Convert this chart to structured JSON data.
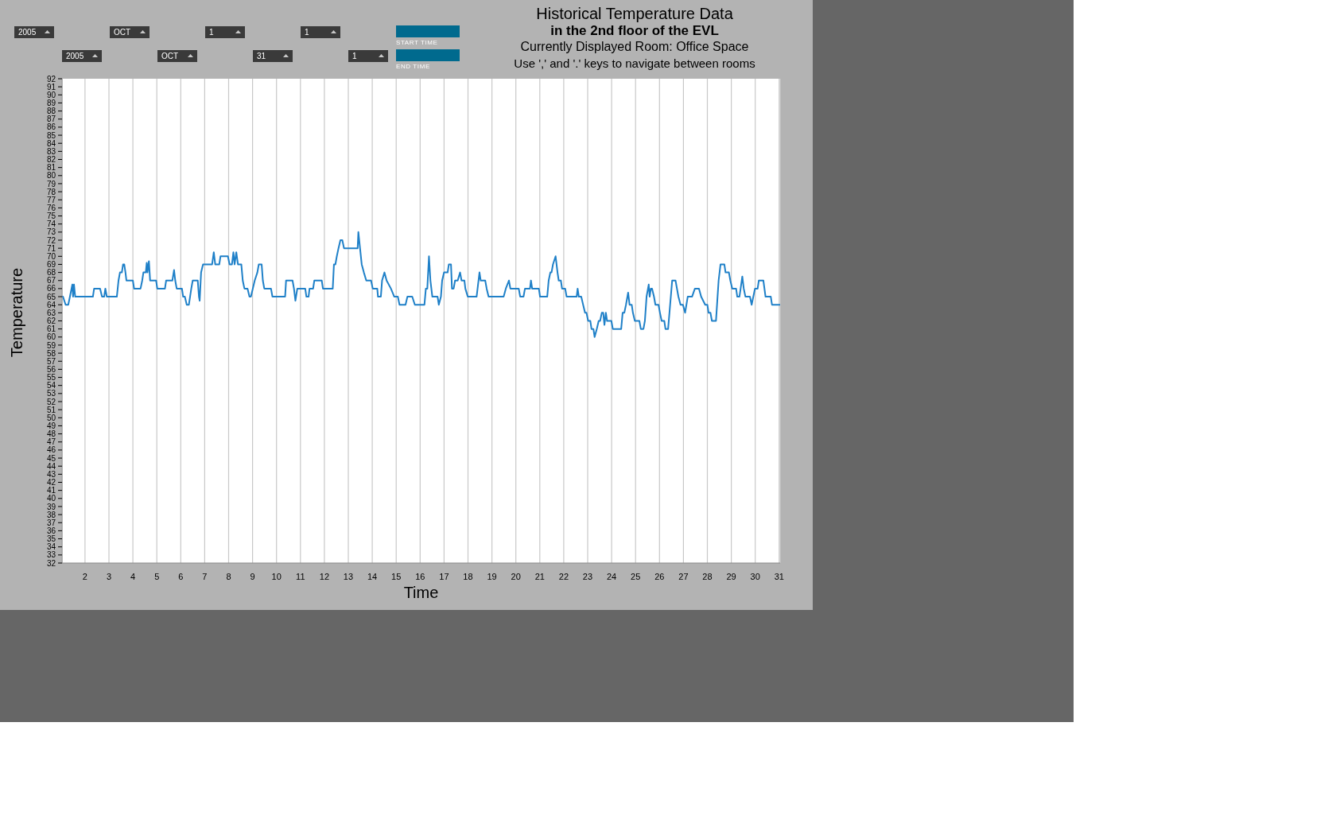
{
  "chart_data": {
    "type": "line",
    "title": "Historical Temperature Data",
    "subtitle": "in the 2nd floor of the EVL",
    "annotations": [
      "Currently Displayed Room: Office Space",
      "Use ',' and '.' keys to navigate between rooms",
      "2005",
      "OCT",
      "1",
      "1",
      "START TIME",
      "2005",
      "OCT",
      "31",
      "1",
      "END TIME"
    ],
    "xlabel": "Time",
    "ylabel": "Temperature",
    "x": [
      1.04,
      1.08,
      1.19,
      1.3,
      1.37,
      1.47,
      1.5,
      1.54,
      1.59,
      2.33,
      2.38,
      2.63,
      2.71,
      2.8,
      2.85,
      2.91,
      3.33,
      3.4,
      3.46,
      3.54,
      3.59,
      3.64,
      3.69,
      3.73,
      4.0,
      4.05,
      4.32,
      4.39,
      4.44,
      4.54,
      4.58,
      4.61,
      4.67,
      4.72,
      4.97,
      5.02,
      5.34,
      5.39,
      5.65,
      5.72,
      5.77,
      5.83,
      6.05,
      6.1,
      6.17,
      6.25,
      6.34,
      6.44,
      6.5,
      6.71,
      6.76,
      6.79,
      6.85,
      6.93,
      7.31,
      7.38,
      7.44,
      7.61,
      7.66,
      7.97,
      8.04,
      8.14,
      8.2,
      8.25,
      8.32,
      8.39,
      8.53,
      8.59,
      8.66,
      8.79,
      8.87,
      8.93,
      9.01,
      9.09,
      9.2,
      9.26,
      9.38,
      9.43,
      9.49,
      9.77,
      9.83,
      10.36,
      10.4,
      10.67,
      10.73,
      10.79,
      10.87,
      11.2,
      11.25,
      11.34,
      11.38,
      11.53,
      11.58,
      11.89,
      11.94,
      12.35,
      12.4,
      12.46,
      12.52,
      12.59,
      12.67,
      12.75,
      12.82,
      13.39,
      13.42,
      13.56,
      13.65,
      13.75,
      13.95,
      14.02,
      14.21,
      14.24,
      14.36,
      14.41,
      14.51,
      14.6,
      14.78,
      14.92,
      15.07,
      15.14,
      15.39,
      15.47,
      15.67,
      15.78,
      16.18,
      16.24,
      16.3,
      16.37,
      16.43,
      16.51,
      16.73,
      16.78,
      16.87,
      16.92,
      17.0,
      17.15,
      17.2,
      17.29,
      17.33,
      17.4,
      17.46,
      17.57,
      17.67,
      17.73,
      17.85,
      17.89,
      17.99,
      18.36,
      18.44,
      18.48,
      18.53,
      18.72,
      18.78,
      18.86,
      19.49,
      19.58,
      19.71,
      19.77,
      20.12,
      20.18,
      20.32,
      20.38,
      20.59,
      20.63,
      20.68,
      20.96,
      21.01,
      21.31,
      21.37,
      21.44,
      21.49,
      21.55,
      21.66,
      21.74,
      21.79,
      21.88,
      21.93,
      22.06,
      22.12,
      22.54,
      22.58,
      22.63,
      22.73,
      22.81,
      22.89,
      22.95,
      23.02,
      23.11,
      23.16,
      23.24,
      23.29,
      23.38,
      23.46,
      23.52,
      23.59,
      23.65,
      23.7,
      23.76,
      23.81,
      23.99,
      24.05,
      24.4,
      24.46,
      24.53,
      24.6,
      24.69,
      24.75,
      24.84,
      24.89,
      24.97,
      25.16,
      25.22,
      25.33,
      25.39,
      25.46,
      25.55,
      25.59,
      25.64,
      25.69,
      25.77,
      25.83,
      25.96,
      26.02,
      26.09,
      26.2,
      26.25,
      26.36,
      26.53,
      26.67,
      26.73,
      26.79,
      26.88,
      26.98,
      27.07,
      27.18,
      27.36,
      27.48,
      27.65,
      27.74,
      27.91,
      28.0,
      28.05,
      28.13,
      28.19,
      28.36,
      28.47,
      28.55,
      28.71,
      28.76,
      28.9,
      28.96,
      29.04,
      29.2,
      29.25,
      29.34,
      29.39,
      29.46,
      29.52,
      29.59,
      29.78,
      29.85,
      29.92,
      29.99,
      30.1,
      30.15,
      30.34,
      30.43,
      30.65,
      30.7,
      31.04
    ],
    "series": [
      {
        "color": "#1f80c8",
        "values": [
          65,
          65,
          64,
          64,
          65,
          66.5,
          65,
          66.5,
          65,
          65,
          66,
          66,
          65,
          65,
          66,
          65,
          65,
          67,
          68,
          68,
          69,
          69,
          68,
          67,
          67,
          66,
          66,
          67,
          68,
          68,
          69.2,
          68,
          69.4,
          67,
          67,
          66,
          66,
          67,
          67,
          68.3,
          67,
          66,
          66,
          65,
          65,
          64,
          64,
          66,
          67,
          67,
          65,
          64.5,
          68,
          69,
          69,
          70.5,
          69,
          69,
          70,
          70,
          69,
          69,
          70.5,
          69,
          70.5,
          69,
          69,
          67,
          66,
          66,
          65,
          65,
          66,
          67,
          68,
          69,
          69,
          67,
          66,
          66,
          65,
          65,
          67,
          67,
          66,
          64.5,
          66,
          66,
          65,
          65,
          66,
          66,
          67,
          67,
          66,
          66,
          69,
          69,
          70,
          71,
          72,
          72,
          71,
          71,
          73,
          69,
          68,
          67,
          67,
          66,
          66,
          65,
          65,
          67,
          68,
          67,
          66,
          65,
          65,
          64,
          64,
          65,
          65,
          64,
          64,
          66,
          66,
          70,
          67,
          65,
          65,
          64,
          65,
          67,
          68,
          68,
          69,
          69,
          66,
          66,
          67,
          67,
          68,
          67,
          67,
          66,
          65,
          65,
          67,
          68,
          67,
          67,
          66,
          65,
          65,
          66,
          67,
          66,
          66,
          65,
          65,
          66,
          66,
          67,
          66,
          66,
          65,
          65,
          67,
          68,
          68,
          69,
          70,
          68,
          67,
          67,
          66,
          66,
          65,
          65,
          66,
          65,
          65,
          64,
          63,
          63,
          62,
          62,
          61,
          61,
          60,
          61,
          62,
          62,
          63,
          63,
          61.5,
          63,
          62,
          62,
          61,
          61,
          63,
          63,
          64,
          65.5,
          64,
          64,
          63,
          62,
          62,
          61,
          61,
          62,
          65,
          66.5,
          65,
          66,
          66,
          65,
          64,
          64,
          63,
          62,
          62,
          61,
          61,
          67,
          67,
          66,
          65,
          64,
          64,
          63,
          65,
          65,
          66,
          66,
          65,
          64,
          64,
          63,
          63,
          62,
          62,
          67,
          69,
          69,
          68,
          68,
          67,
          66,
          66,
          65,
          65,
          66,
          67.5,
          66,
          65,
          65,
          64,
          65,
          66,
          66,
          67,
          67,
          65,
          65,
          64,
          64
        ]
      }
    ],
    "xlim": [
      1.04,
      31.04
    ],
    "xticks": [
      2,
      3,
      4,
      5,
      6,
      7,
      8,
      9,
      10,
      11,
      12,
      13,
      14,
      15,
      16,
      17,
      18,
      19,
      20,
      21,
      22,
      23,
      24,
      25,
      26,
      27,
      28,
      29,
      30,
      31
    ],
    "ylim": [
      32,
      92
    ],
    "yticks": [
      32,
      33,
      34,
      35,
      36,
      37,
      38,
      39,
      40,
      41,
      42,
      43,
      44,
      45,
      46,
      47,
      48,
      49,
      50,
      51,
      52,
      53,
      54,
      55,
      56,
      57,
      58,
      59,
      60,
      61,
      62,
      63,
      64,
      65,
      66,
      67,
      68,
      69,
      70,
      71,
      72,
      73,
      74,
      75,
      76,
      77,
      78,
      79,
      80,
      81,
      82,
      83,
      84,
      85,
      86,
      87,
      88,
      89,
      90,
      91,
      92
    ],
    "grid": "x",
    "marker": "none",
    "line_style": "solid"
  }
}
